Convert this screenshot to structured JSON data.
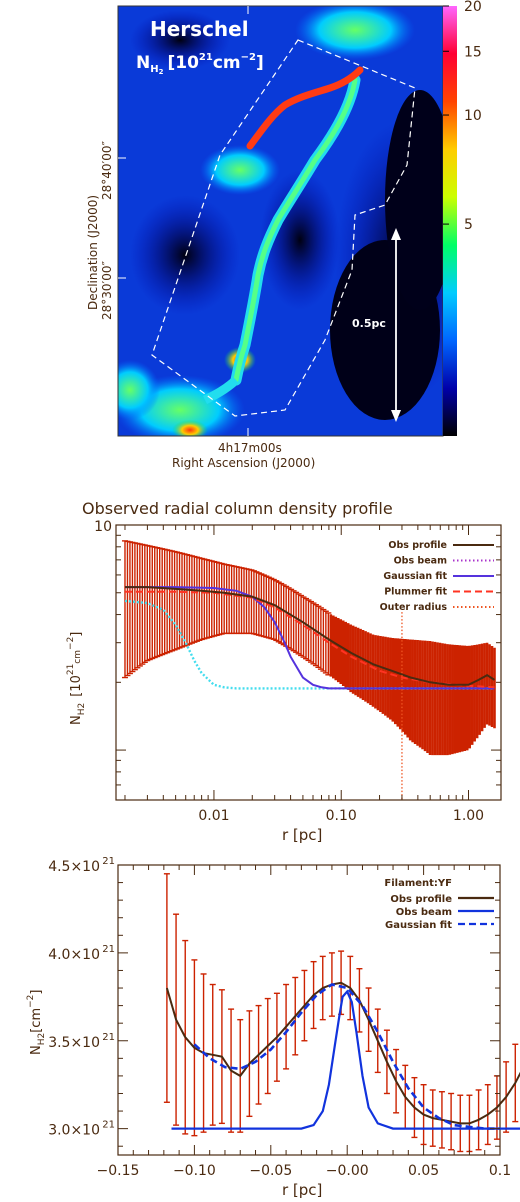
{
  "chart_data": [
    {
      "type": "heatmap",
      "panel_title": "Herschel",
      "quantity_label": "N",
      "quantity_sub": "H",
      "quantity_sub2": "2",
      "quantity_units": "[10",
      "quantity_units_exp": "21",
      "quantity_units_tail": "cm",
      "quantity_units_tail_exp": "−2",
      "quantity_units_close": "]",
      "xlabel": "Right Ascension (J2000)",
      "ylabel": "Declination (J2000)",
      "xticks": [
        {
          "label": "4h17m00s"
        }
      ],
      "yticks": [
        {
          "label": "28°40′00″"
        },
        {
          "label": "28°30′00″"
        }
      ],
      "scale_bar_label": "0.5pc",
      "colorbar_ticks": [
        20,
        15,
        10,
        5
      ],
      "colormap": [
        "#000000",
        "#0000aa",
        "#0066ff",
        "#00ccff",
        "#00ff66",
        "#ccff00",
        "#ffcc00",
        "#ff4400",
        "#ff0033",
        "#ff66ff"
      ]
    },
    {
      "type": "line",
      "title": "Observed radial column density profile",
      "xlabel": "r [pc]",
      "ylabel_main": "N",
      "ylabel_sub": "H2",
      "ylabel_units": "[10",
      "ylabel_units_exp": "21",
      "ylabel_units_tail": "cm",
      "ylabel_units_tail_exp": "−2",
      "ylabel_units_close": "]",
      "xscale": "log",
      "yscale": "log",
      "xlim": [
        0.0017,
        1.8
      ],
      "ylim": [
        0.6,
        10
      ],
      "xticks": [
        {
          "value": 0.01,
          "label": "0.01"
        },
        {
          "value": 0.1,
          "label": "0.10"
        },
        {
          "value": 1.0,
          "label": "1.00"
        }
      ],
      "yticks": [
        {
          "value": 10,
          "label": "10"
        }
      ],
      "legend_position": "top-right",
      "legend": [
        {
          "label": "Obs profile",
          "color": "#4a2a10",
          "dash": "solid"
        },
        {
          "label": "Obs beam",
          "color": "#aa33cc",
          "dash": "dot"
        },
        {
          "label": "Gaussian fit",
          "color": "#5533dd",
          "dash": "solid"
        },
        {
          "label": "Plummer fit",
          "color": "#ff3322",
          "dash": "dash"
        },
        {
          "label": "Outer radius",
          "color": "#ee5522",
          "dash": "dot"
        }
      ],
      "outer_radius": 0.3,
      "series": [
        {
          "name": "Obs profile",
          "x": [
            0.002,
            0.003,
            0.005,
            0.008,
            0.012,
            0.02,
            0.03,
            0.05,
            0.08,
            0.12,
            0.18,
            0.25,
            0.35,
            0.5,
            0.7,
            1.0,
            1.2,
            1.4,
            1.6
          ],
          "y": [
            5.3,
            5.3,
            5.2,
            5.1,
            5.0,
            4.8,
            4.4,
            3.7,
            3.1,
            2.7,
            2.4,
            2.25,
            2.1,
            2.0,
            1.95,
            1.95,
            2.05,
            2.15,
            2.05
          ],
          "err": [
            3.2,
            2.8,
            2.4,
            2.0,
            1.7,
            1.5,
            1.3,
            1.1,
            0.95,
            0.9,
            0.85,
            0.9,
            1.0,
            1.05,
            1.0,
            0.95,
            0.9,
            0.85,
            0.8
          ]
        },
        {
          "name": "Obs beam",
          "x": [
            0.002,
            0.003,
            0.004,
            0.005,
            0.006,
            0.007,
            0.008,
            0.01,
            0.012,
            0.015,
            0.02,
            0.05,
            0.1,
            0.3,
            1.0,
            1.6
          ],
          "y": [
            4.6,
            4.5,
            4.2,
            3.6,
            3.0,
            2.5,
            2.2,
            1.95,
            1.9,
            1.88,
            1.88,
            1.88,
            1.88,
            1.88,
            1.88,
            1.88
          ]
        },
        {
          "name": "Gaussian fit",
          "x": [
            0.002,
            0.005,
            0.01,
            0.015,
            0.02,
            0.025,
            0.03,
            0.035,
            0.04,
            0.05,
            0.06,
            0.07,
            0.08,
            0.1,
            0.3,
            1.0,
            1.6
          ],
          "y": [
            5.3,
            5.3,
            5.25,
            5.1,
            4.8,
            4.3,
            3.7,
            3.1,
            2.6,
            2.1,
            1.95,
            1.9,
            1.88,
            1.88,
            1.88,
            1.88,
            1.88
          ]
        },
        {
          "name": "Plummer fit",
          "x": [
            0.002,
            0.005,
            0.01,
            0.02,
            0.03,
            0.05,
            0.08,
            0.12,
            0.2,
            0.3,
            0.5,
            0.8,
            1.0,
            1.6
          ],
          "y": [
            5.05,
            5.05,
            5.0,
            4.75,
            4.3,
            3.6,
            3.0,
            2.6,
            2.25,
            2.1,
            2.0,
            1.95,
            1.93,
            1.9
          ]
        }
      ]
    },
    {
      "type": "line",
      "xlabel": "r [pc]",
      "ylabel_main": "N",
      "ylabel_sub": "H2",
      "ylabel_units": "[cm",
      "ylabel_units_exp": "−2",
      "ylabel_units_close": "]",
      "xlim": [
        -0.15,
        0.1
      ],
      "ylim": [
        2.85,
        4.5
      ],
      "xticks": [
        {
          "value": -0.15,
          "label": "−0.15"
        },
        {
          "value": -0.1,
          "label": "−0.10"
        },
        {
          "value": -0.05,
          "label": "−0.05"
        },
        {
          "value": 0.0,
          "label": "−0.00"
        },
        {
          "value": 0.05,
          "label": "0.05"
        },
        {
          "value": 0.1,
          "label": "0.1"
        }
      ],
      "yticks": [
        {
          "value": 3.0,
          "label": "3.0×10",
          "exp": "21"
        },
        {
          "value": 3.5,
          "label": "3.5×10",
          "exp": "21"
        },
        {
          "value": 4.0,
          "label": "4.0×10",
          "exp": "21"
        },
        {
          "value": 4.5,
          "label": "4.5×10",
          "exp": "21"
        }
      ],
      "legend_position": "top-right",
      "legend_title": "Filament:YF",
      "legend": [
        {
          "label": "Obs profile",
          "color": "#4a2a10",
          "dash": "solid"
        },
        {
          "label": "Obs beam",
          "color": "#1133dd",
          "dash": "solid"
        },
        {
          "label": "Gaussian fit",
          "color": "#1133dd",
          "dash": "dash"
        }
      ],
      "series": [
        {
          "name": "Obs profile",
          "x": [
            -0.118,
            -0.112,
            -0.106,
            -0.1,
            -0.094,
            -0.088,
            -0.082,
            -0.076,
            -0.07,
            -0.064,
            -0.058,
            -0.052,
            -0.046,
            -0.04,
            -0.034,
            -0.028,
            -0.022,
            -0.016,
            -0.01,
            -0.004,
            0.002,
            0.008,
            0.014,
            0.02,
            0.026,
            0.032,
            0.038,
            0.044,
            0.05,
            0.056,
            0.062,
            0.068,
            0.074,
            0.08,
            0.086,
            0.092,
            0.098,
            0.104,
            0.11,
            0.116
          ],
          "y": [
            3.8,
            3.62,
            3.52,
            3.46,
            3.43,
            3.42,
            3.41,
            3.33,
            3.3,
            3.37,
            3.42,
            3.47,
            3.52,
            3.58,
            3.64,
            3.7,
            3.76,
            3.8,
            3.82,
            3.83,
            3.8,
            3.73,
            3.62,
            3.5,
            3.38,
            3.27,
            3.18,
            3.12,
            3.08,
            3.06,
            3.05,
            3.04,
            3.03,
            3.03,
            3.05,
            3.08,
            3.12,
            3.18,
            3.26,
            3.36
          ],
          "err": [
            0.65,
            0.6,
            0.55,
            0.5,
            0.45,
            0.4,
            0.38,
            0.35,
            0.32,
            0.3,
            0.28,
            0.27,
            0.25,
            0.24,
            0.22,
            0.2,
            0.19,
            0.18,
            0.18,
            0.18,
            0.18,
            0.18,
            0.18,
            0.18,
            0.18,
            0.18,
            0.18,
            0.17,
            0.17,
            0.16,
            0.16,
            0.16,
            0.16,
            0.16,
            0.17,
            0.17,
            0.18,
            0.2,
            0.22,
            0.24
          ]
        },
        {
          "name": "Obs beam",
          "x": [
            -0.115,
            -0.05,
            -0.03,
            -0.022,
            -0.016,
            -0.012,
            -0.008,
            -0.005,
            -0.003,
            0.0,
            0.003,
            0.006,
            0.01,
            0.014,
            0.02,
            0.03,
            0.05,
            0.117
          ],
          "y": [
            3.0,
            3.0,
            3.0,
            3.02,
            3.1,
            3.25,
            3.48,
            3.65,
            3.75,
            3.78,
            3.72,
            3.55,
            3.3,
            3.12,
            3.03,
            3.0,
            3.0,
            3.0
          ]
        },
        {
          "name": "Gaussian fit",
          "x": [
            -0.1,
            -0.09,
            -0.08,
            -0.07,
            -0.06,
            -0.05,
            -0.04,
            -0.03,
            -0.02,
            -0.01,
            0.0,
            0.01,
            0.02,
            0.03,
            0.04,
            0.05,
            0.06,
            0.07,
            0.08,
            0.09,
            0.1
          ],
          "y": [
            3.48,
            3.4,
            3.35,
            3.34,
            3.38,
            3.45,
            3.55,
            3.66,
            3.76,
            3.82,
            3.8,
            3.7,
            3.55,
            3.38,
            3.23,
            3.12,
            3.06,
            3.02,
            3.01,
            3.0,
            3.0
          ]
        }
      ]
    }
  ]
}
